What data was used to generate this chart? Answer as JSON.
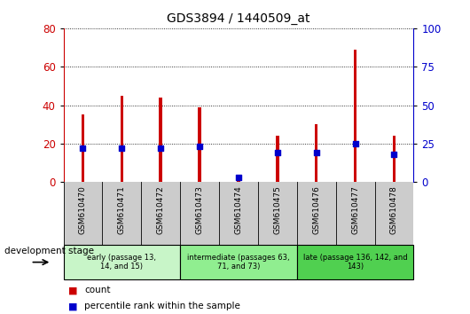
{
  "title": "GDS3894 / 1440509_at",
  "samples": [
    "GSM610470",
    "GSM610471",
    "GSM610472",
    "GSM610473",
    "GSM610474",
    "GSM610475",
    "GSM610476",
    "GSM610477",
    "GSM610478"
  ],
  "counts": [
    35,
    45,
    44,
    39,
    2,
    24,
    30,
    69,
    24
  ],
  "percentile_ranks": [
    22,
    22,
    22,
    23,
    3,
    19,
    19,
    25,
    18
  ],
  "left_ylim": [
    0,
    80
  ],
  "right_ylim": [
    0,
    100
  ],
  "left_yticks": [
    0,
    20,
    40,
    60,
    80
  ],
  "right_yticks": [
    0,
    25,
    50,
    75,
    100
  ],
  "groups": [
    {
      "label": "early (passage 13,\n14, and 15)",
      "start": 0,
      "end": 3,
      "color": "#c8f5c8"
    },
    {
      "label": "intermediate (passages 63,\n71, and 73)",
      "start": 3,
      "end": 6,
      "color": "#90ee90"
    },
    {
      "label": "late (passage 136, 142, and\n143)",
      "start": 6,
      "end": 9,
      "color": "#50d050"
    }
  ],
  "bar_color": "#cc0000",
  "dot_color": "#0000cc",
  "background_color": "#ffffff",
  "plot_bg_color": "#ffffff",
  "tick_label_color_left": "#cc0000",
  "tick_label_color_right": "#0000cc",
  "bar_width": 0.08,
  "grid_color": "#000000",
  "xlabel_area_color": "#cccccc",
  "dev_stage_label": "development stage",
  "legend_count": "count",
  "legend_percentile": "percentile rank within the sample"
}
